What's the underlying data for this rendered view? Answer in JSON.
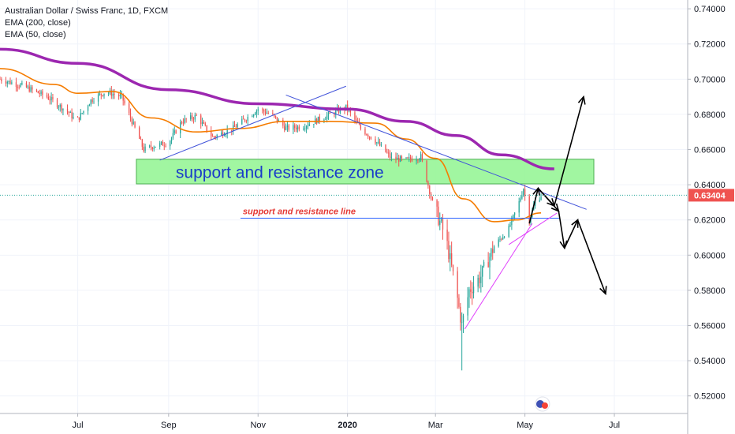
{
  "legend": {
    "symbol": "Australian Dollar / Swiss Franc, 1D, FXCM",
    "ema200": "EMA (200, close)",
    "ema50": "EMA (50, close)"
  },
  "annotations": {
    "zone_label": "support and resistance zone",
    "line_label": "support and resistance line"
  },
  "colors": {
    "up": "#26a69a",
    "down": "#ef5350",
    "ema200": "#9c27b0",
    "ema50": "#f57c00",
    "zone_fill": "#90f590",
    "trendline": "#3f51d9",
    "support_line": "#2962ff",
    "wedge": "#e040fb",
    "price_badge": "#ef5350"
  },
  "chart_data": {
    "type": "candlestick",
    "title": "Australian Dollar / Swiss Franc, 1D, FXCM",
    "ylim": [
      0.51,
      0.745
    ],
    "y_ticks": [
      "0.74000",
      "0.72000",
      "0.70000",
      "0.68000",
      "0.66000",
      "0.64000",
      "0.62000",
      "0.60000",
      "0.58000",
      "0.56000",
      "0.54000",
      "0.52000"
    ],
    "x_ticks": [
      {
        "label": "Jul",
        "date": "2019-07-01"
      },
      {
        "label": "Sep",
        "date": "2019-09-01"
      },
      {
        "label": "Nov",
        "date": "2019-11-01"
      },
      {
        "label": "2020",
        "date": "2020-01-01"
      },
      {
        "label": "Mar",
        "date": "2020-03-01"
      },
      {
        "label": "May",
        "date": "2020-05-01"
      },
      {
        "label": "Jul",
        "date": "2020-07-01"
      }
    ],
    "xlim": [
      "2019-05-09",
      "2020-08-20"
    ],
    "last_price": "0.63404",
    "close_path": [
      [
        "2019-05-09",
        0.7
      ],
      [
        "2019-05-25",
        0.696
      ],
      [
        "2019-06-10",
        0.69
      ],
      [
        "2019-06-25",
        0.681
      ],
      [
        "2019-06-30",
        0.676
      ],
      [
        "2019-07-10",
        0.688
      ],
      [
        "2019-07-20",
        0.693
      ],
      [
        "2019-07-31",
        0.69
      ],
      [
        "2019-08-08",
        0.674
      ],
      [
        "2019-08-15",
        0.66
      ],
      [
        "2019-08-22",
        0.662
      ],
      [
        "2019-09-01",
        0.664
      ],
      [
        "2019-09-10",
        0.676
      ],
      [
        "2019-09-20",
        0.679
      ],
      [
        "2019-10-01",
        0.667
      ],
      [
        "2019-10-15",
        0.672
      ],
      [
        "2019-11-01",
        0.683
      ],
      [
        "2019-11-10",
        0.68
      ],
      [
        "2019-11-20",
        0.672
      ],
      [
        "2019-12-01",
        0.673
      ],
      [
        "2019-12-15",
        0.678
      ],
      [
        "2019-12-31",
        0.684
      ],
      [
        "2020-01-10",
        0.672
      ],
      [
        "2020-01-20",
        0.665
      ],
      [
        "2020-01-31",
        0.655
      ],
      [
        "2020-02-10",
        0.654
      ],
      [
        "2020-02-20",
        0.656
      ],
      [
        "2020-02-28",
        0.63
      ],
      [
        "2020-03-08",
        0.61
      ],
      [
        "2020-03-15",
        0.58
      ],
      [
        "2020-03-19",
        0.56
      ],
      [
        "2020-03-24",
        0.58
      ],
      [
        "2020-04-01",
        0.588
      ],
      [
        "2020-04-10",
        0.605
      ],
      [
        "2020-04-20",
        0.615
      ],
      [
        "2020-04-27",
        0.63
      ],
      [
        "2020-04-30",
        0.638
      ],
      [
        "2020-05-04",
        0.62
      ],
      [
        "2020-05-08",
        0.63
      ],
      [
        "2020-05-12",
        0.634
      ]
    ],
    "series": [
      {
        "name": "EMA (200, close)",
        "points": [
          [
            "2019-05-09",
            0.717
          ],
          [
            "2019-07-01",
            0.709
          ],
          [
            "2019-09-01",
            0.694
          ],
          [
            "2019-11-01",
            0.686
          ],
          [
            "2020-01-01",
            0.683
          ],
          [
            "2020-02-10",
            0.676
          ],
          [
            "2020-03-15",
            0.668
          ],
          [
            "2020-04-15",
            0.657
          ],
          [
            "2020-05-21",
            0.649
          ]
        ]
      },
      {
        "name": "EMA (50, close)",
        "points": [
          [
            "2019-05-09",
            0.706
          ],
          [
            "2019-06-15",
            0.697
          ],
          [
            "2019-07-01",
            0.692
          ],
          [
            "2019-07-25",
            0.693
          ],
          [
            "2019-08-20",
            0.678
          ],
          [
            "2019-09-20",
            0.67
          ],
          [
            "2019-10-20",
            0.672
          ],
          [
            "2019-11-20",
            0.676
          ],
          [
            "2019-12-20",
            0.676
          ],
          [
            "2020-01-20",
            0.675
          ],
          [
            "2020-02-10",
            0.666
          ],
          [
            "2020-03-01",
            0.655
          ],
          [
            "2020-03-20",
            0.632
          ],
          [
            "2020-04-10",
            0.619
          ],
          [
            "2020-04-25",
            0.62
          ],
          [
            "2020-05-12",
            0.624
          ]
        ]
      }
    ],
    "drawings": {
      "zone": {
        "from": "2019-08-10",
        "to": "2020-06-17",
        "low": 0.6405,
        "high": 0.6545
      },
      "support_line": {
        "from": "2019-10-20",
        "to": "2020-05-25",
        "value": 0.621
      },
      "trendlines": [
        {
          "from": [
            "2019-08-26",
            0.654
          ],
          "to": [
            "2019-12-31",
            0.696
          ],
          "color": "trendline"
        },
        {
          "from": [
            "2019-11-20",
            0.691
          ],
          "to": [
            "2020-06-12",
            0.626
          ],
          "color": "trendline"
        },
        {
          "from": [
            "2020-03-21",
            0.558
          ],
          "to": [
            "2020-05-06",
            0.618
          ],
          "color": "wedge"
        },
        {
          "from": [
            "2020-04-20",
            0.606
          ],
          "to": [
            "2020-05-23",
            0.624
          ],
          "color": "wedge"
        }
      ],
      "projections": [
        {
          "points": [
            [
              "2020-05-04",
              0.618
            ],
            [
              "2020-05-10",
              0.638
            ],
            [
              "2020-05-21",
              0.628
            ],
            [
              "2020-06-10",
              0.69
            ]
          ],
          "arrow": true
        },
        {
          "points": [
            [
              "2020-05-10",
              0.638
            ],
            [
              "2020-05-24",
              0.625
            ],
            [
              "2020-05-28",
              0.604
            ],
            [
              "2020-06-06",
              0.62
            ],
            [
              "2020-06-25",
              0.578
            ]
          ],
          "arrow": true
        }
      ]
    }
  }
}
